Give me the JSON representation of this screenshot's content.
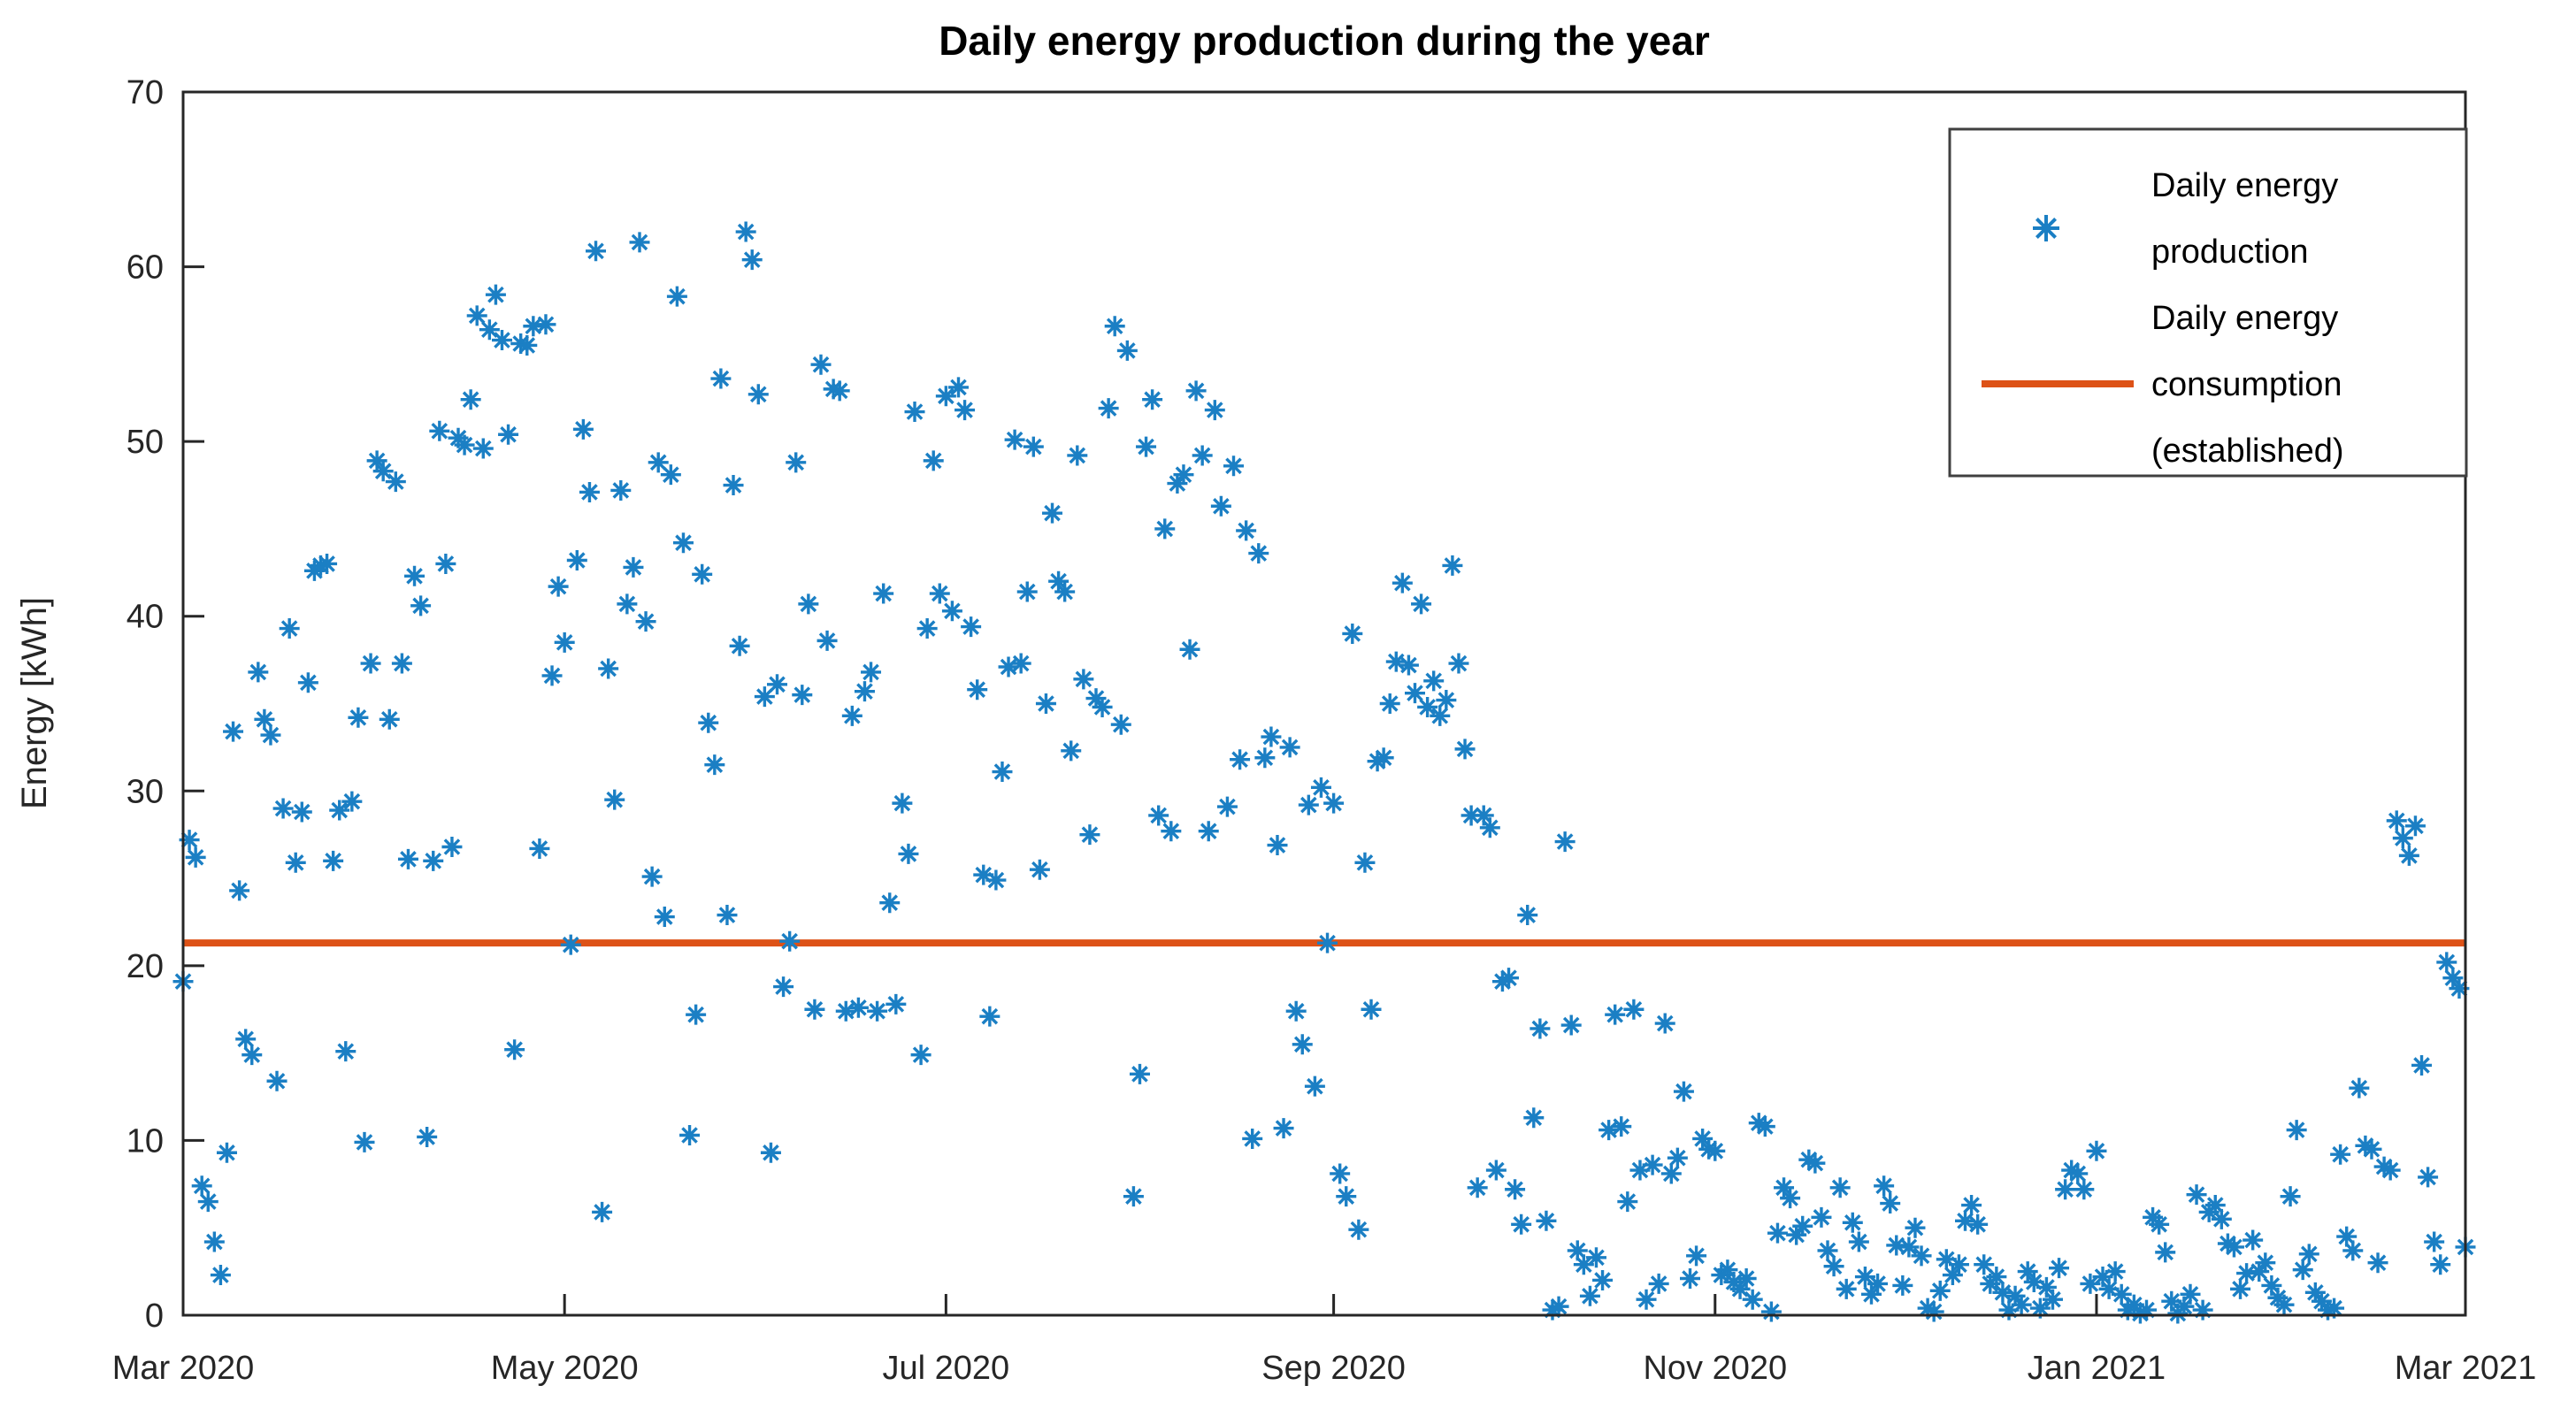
{
  "chart_data": {
    "type": "scatter",
    "title": "Daily energy production during the year",
    "xlabel": "",
    "ylabel": "Energy [kWh]",
    "ylim": [
      0,
      70
    ],
    "yticks": [
      0,
      10,
      20,
      30,
      40,
      50,
      60,
      70
    ],
    "x_axis": {
      "unit": "day index from Mar 1 2020",
      "range_days": [
        0,
        365
      ],
      "ticks": [
        {
          "label": "Mar 2020",
          "day": 0
        },
        {
          "label": "May 2020",
          "day": 61
        },
        {
          "label": "Jul 2020",
          "day": 122
        },
        {
          "label": "Sep 2020",
          "day": 184
        },
        {
          "label": "Nov 2020",
          "day": 245
        },
        {
          "label": "Jan 2021",
          "day": 306
        },
        {
          "label": "Mar 2021",
          "day": 365
        }
      ]
    },
    "grid": false,
    "legend_position": "northeast",
    "series": [
      {
        "name": "Daily energy production",
        "legend_lines": [
          "Daily energy",
          "production"
        ],
        "type": "scatter",
        "marker": "asterisk",
        "color": "#1B7FC4",
        "values_by_day": [
          19.1,
          27.2,
          26.2,
          7.4,
          6.5,
          4.2,
          2.3,
          9.3,
          33.4,
          24.3,
          15.8,
          14.9,
          36.8,
          34.1,
          33.2,
          13.4,
          29.0,
          39.3,
          25.9,
          28.8,
          36.2,
          42.6,
          42.9,
          43.0,
          26.0,
          28.9,
          15.1,
          29.4,
          34.2,
          9.9,
          37.3,
          48.9,
          48.3,
          34.1,
          47.7,
          37.3,
          26.1,
          42.3,
          40.6,
          10.2,
          26.0,
          50.6,
          43.0,
          26.8,
          50.2,
          49.8,
          52.4,
          57.2,
          49.6,
          56.4,
          58.4,
          55.8,
          50.4,
          15.2,
          55.6,
          55.5,
          56.6,
          26.7,
          56.7,
          36.6,
          41.7,
          38.5,
          21.2,
          43.2,
          50.7,
          47.1,
          60.9,
          5.9,
          37.0,
          29.5,
          47.2,
          40.7,
          42.8,
          61.4,
          39.7,
          25.1,
          48.8,
          22.8,
          48.1,
          58.3,
          44.2,
          10.3,
          17.2,
          42.4,
          33.9,
          31.5,
          53.6,
          22.9,
          47.5,
          38.3,
          62.0,
          60.4,
          52.7,
          35.4,
          9.3,
          36.1,
          18.8,
          21.4,
          48.8,
          35.5,
          40.7,
          17.5,
          54.4,
          38.6,
          53.0,
          52.9,
          17.4,
          34.3,
          17.6,
          35.7,
          36.8,
          17.4,
          41.3,
          23.6,
          17.8,
          29.3,
          26.4,
          51.7,
          14.9,
          39.3,
          48.9,
          41.3,
          52.6,
          40.3,
          53.1,
          51.8,
          39.4,
          35.8,
          25.2,
          17.1,
          24.9,
          31.1,
          37.1,
          50.1,
          37.3,
          41.4,
          49.7,
          25.5,
          35.0,
          45.9,
          42.0,
          41.4,
          32.3,
          49.2,
          36.4,
          27.5,
          35.3,
          34.8,
          51.9,
          56.6,
          33.8,
          55.2,
          6.8,
          13.8,
          49.7,
          52.4,
          28.6,
          45.0,
          27.7,
          47.6,
          48.1,
          38.1,
          52.9,
          49.2,
          27.7,
          51.8,
          46.3,
          29.1,
          48.6,
          31.8,
          44.9,
          10.1,
          43.6,
          31.9,
          33.1,
          26.9,
          10.7,
          32.5,
          17.4,
          15.5,
          29.2,
          13.1,
          30.2,
          21.3,
          29.3,
          8.1,
          6.8,
          39.0,
          4.9,
          25.9,
          17.5,
          31.7,
          31.9,
          35.0,
          37.4,
          41.9,
          37.2,
          35.6,
          40.7,
          34.8,
          36.3,
          34.3,
          35.2,
          42.9,
          37.3,
          32.4,
          28.6,
          7.3,
          28.6,
          27.9,
          8.3,
          19.1,
          19.3,
          7.2,
          5.2,
          22.9,
          11.3,
          16.4,
          5.4,
          0.3,
          0.5,
          27.1,
          16.6,
          3.7,
          2.9,
          1.1,
          3.3,
          2.0,
          10.6,
          17.2,
          10.8,
          6.5,
          17.5,
          8.3,
          0.9,
          8.6,
          1.8,
          16.7,
          8.1,
          9.0,
          12.8,
          2.1,
          3.4,
          10.1,
          9.5,
          9.4,
          2.3,
          2.6,
          1.9,
          1.5,
          2.1,
          0.9,
          11.0,
          10.8,
          0.2,
          4.7,
          7.3,
          6.7,
          4.6,
          5.1,
          8.9,
          8.7,
          5.6,
          3.7,
          2.8,
          7.3,
          1.5,
          5.3,
          4.2,
          2.2,
          1.2,
          1.8,
          7.4,
          6.4,
          4.0,
          1.7,
          3.9,
          5.0,
          3.4,
          0.4,
          0.2,
          1.4,
          3.2,
          2.3,
          2.9,
          5.4,
          6.3,
          5.2,
          2.9,
          1.8,
          2.2,
          1.3,
          0.3,
          1.1,
          0.6,
          2.5,
          1.9,
          0.4,
          1.6,
          0.9,
          2.7,
          7.2,
          8.3,
          8.1,
          7.2,
          1.8,
          9.4,
          2.2,
          1.5,
          2.5,
          1.2,
          0.3,
          0.6,
          0.1,
          0.3,
          5.6,
          5.2,
          3.6,
          0.8,
          0.1,
          0.5,
          1.2,
          6.9,
          0.3,
          5.9,
          6.3,
          5.5,
          4.1,
          3.9,
          1.5,
          2.4,
          4.3,
          2.5,
          3.0,
          1.7,
          1.0,
          0.6,
          6.8,
          10.6,
          2.6,
          3.5,
          1.3,
          0.8,
          0.3,
          0.4,
          9.2,
          4.5,
          3.7,
          13.0,
          9.7,
          9.5,
          3.0,
          8.5,
          8.3,
          28.3,
          27.3,
          26.3,
          28.0,
          14.3,
          7.9,
          4.2,
          2.9,
          20.2,
          19.3,
          18.7,
          3.9
        ]
      },
      {
        "name": "Daily energy consumption (established)",
        "legend_lines": [
          "Daily energy",
          "consumption",
          "(established)"
        ],
        "type": "hline",
        "color": "#DD5217",
        "value": 21.3
      }
    ],
    "axis_color": "#262626"
  }
}
